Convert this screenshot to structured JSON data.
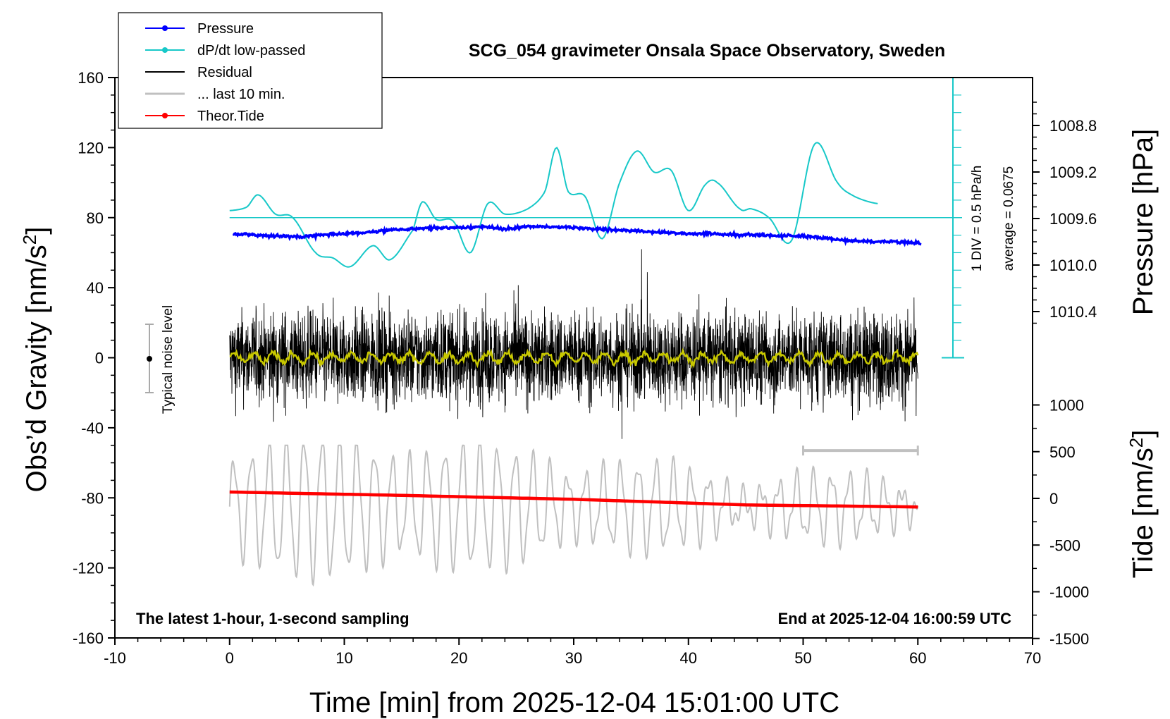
{
  "chart_data": {
    "type": "line",
    "title": "SCG_054 gravimeter Onsala Space Observatory, Sweden",
    "xlabel": "Time [min] from 2025-12-04 15:01:00 UTC",
    "ylabel_left_prefix": "Obs’d Gravity [nm/s",
    "ylabel_left_sup": "2",
    "ylabel_left_suffix": "]",
    "ylabel_right_pressure": "Pressure [hPa]",
    "ylabel_right_tide_prefix": "Tide [nm/s",
    "ylabel_right_tide_sup": "2",
    "ylabel_right_tide_suffix": "]",
    "xlim": [
      -10,
      70
    ],
    "ylim": [
      -160,
      160
    ],
    "x_ticks": [
      "-10",
      "0",
      "10",
      "20",
      "30",
      "40",
      "50",
      "60",
      "70"
    ],
    "y_ticks": [
      "160",
      "120",
      "80",
      "40",
      "0",
      "-40",
      "-80",
      "-120",
      "-160"
    ],
    "pressure_ticks": [
      "1010.4",
      "1010.0",
      "1009.6",
      "1009.2",
      "1008.8"
    ],
    "pressure_tick_values": [
      1010.4,
      1010.0,
      1009.6,
      1009.2,
      1008.8
    ],
    "tide_ticks": [
      "1000",
      "500",
      "0",
      "-500",
      "-1000",
      "-1500"
    ],
    "tide_tick_values": [
      1000,
      500,
      0,
      -500,
      -1000,
      -1500
    ],
    "annotation_left": "The latest 1-hour, 1-second sampling",
    "annotation_right": "End at 2025-12-04 16:00:59 UTC",
    "noise_label": "Typical noise level",
    "noise_level": 20,
    "dpdt_scale_label": "1 DIV = 0.5 hPa/h",
    "dpdt_average_label": "average = 0.0675",
    "legend_position": "top-left",
    "grid": false,
    "colors": {
      "pressure": "#0000ff",
      "dpdt": "#17c8c8",
      "residual": "#000000",
      "last10": "#c0c0c0",
      "tide": "#ff0000",
      "smoothed": "#c8c800"
    },
    "legend": [
      {
        "key": "pressure",
        "label": "Pressure",
        "marker": true
      },
      {
        "key": "dpdt",
        "label": "dP/dt low-passed",
        "marker": true
      },
      {
        "key": "residual",
        "label": "Residual",
        "marker": false
      },
      {
        "key": "last10",
        "label": "... last 10 min.",
        "marker": false
      },
      {
        "key": "tide",
        "label": "Theor.Tide",
        "marker": true
      }
    ],
    "pressure_series": {
      "x": [
        0,
        2,
        4,
        6,
        8,
        10,
        12,
        14,
        16,
        18,
        20,
        22,
        24,
        26,
        28,
        30,
        32,
        34,
        36,
        38,
        40,
        42,
        44,
        46,
        48,
        50,
        52,
        54,
        56,
        58,
        60
      ],
      "values": [
        1009.73,
        1009.74,
        1009.75,
        1009.76,
        1009.74,
        1009.73,
        1009.72,
        1009.7,
        1009.69,
        1009.68,
        1009.68,
        1009.67,
        1009.69,
        1009.67,
        1009.67,
        1009.68,
        1009.69,
        1009.7,
        1009.71,
        1009.72,
        1009.73,
        1009.73,
        1009.74,
        1009.74,
        1009.75,
        1009.75,
        1009.77,
        1009.79,
        1009.8,
        1009.8,
        1009.81
      ]
    },
    "dpdt_series": {
      "x": [
        0,
        1.5,
        2.5,
        4,
        5.5,
        7.5,
        9,
        10.5,
        12.5,
        14,
        16,
        16.8,
        18,
        19.5,
        21,
        22.5,
        24,
        26,
        27.5,
        28.5,
        29.5,
        31,
        32.5,
        34,
        35.5,
        37,
        38.5,
        40,
        41.5,
        42.5,
        44.5,
        45.5,
        47,
        49,
        51,
        53,
        54.5,
        56.5
      ],
      "values": [
        84,
        86,
        93,
        82,
        80,
        60,
        57,
        52,
        64,
        56,
        73,
        89,
        79,
        78,
        60,
        88,
        82,
        85,
        95,
        120,
        95,
        92,
        68,
        100,
        118,
        106,
        107,
        84,
        99,
        100,
        85,
        85,
        80,
        67,
        122,
        100,
        92,
        88
      ]
    },
    "residual_stats": {
      "x_start": 0,
      "x_end": 60,
      "typical_amplitude": 30,
      "max": 62,
      "min": -62
    },
    "last10_series": {
      "x_start": 0,
      "x_end": 60,
      "center": -85,
      "amplitude": 25,
      "max": -50,
      "min": -147
    },
    "tide_series": {
      "x": [
        0,
        15,
        30,
        45,
        60
      ],
      "values": [
        68,
        32,
        -10,
        -70,
        -92
      ]
    },
    "last10_marker": {
      "x_start": 50,
      "x_end": 60,
      "y": -53
    }
  }
}
